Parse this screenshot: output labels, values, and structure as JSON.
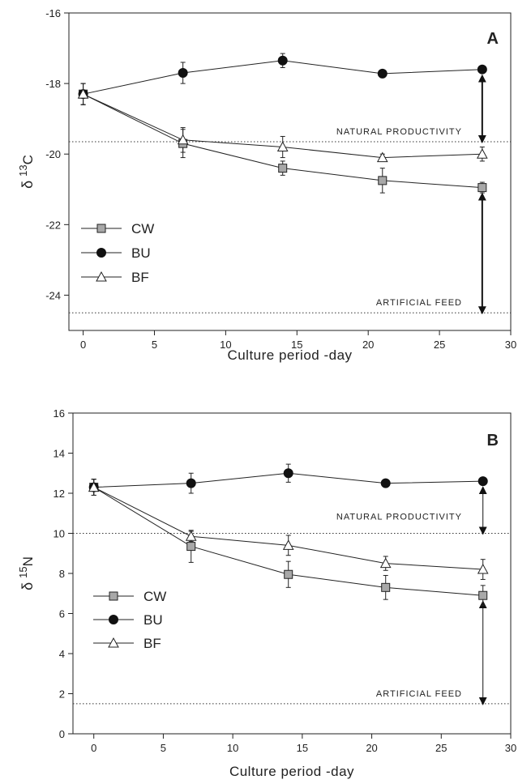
{
  "chart_data": [
    {
      "type": "line",
      "panel_label": "A",
      "xlabel": "Culture period -day",
      "ylabel": {
        "symbol": "δ",
        "superscript": "13",
        "element": "C"
      },
      "xlim": [
        -1,
        30
      ],
      "ylim": [
        -25,
        -16
      ],
      "xticks": [
        0,
        5,
        10,
        15,
        20,
        25,
        30
      ],
      "yticks": [
        -24,
        -22,
        -20,
        -18,
        -16
      ],
      "x": [
        0,
        7,
        14,
        21,
        28
      ],
      "series": [
        {
          "name": "CW",
          "marker": "square",
          "values": [
            -18.3,
            -19.7,
            -20.4,
            -20.75,
            -20.95
          ],
          "errors": [
            0.3,
            0.4,
            0.2,
            0.35,
            0.15
          ]
        },
        {
          "name": "BU",
          "marker": "circle",
          "values": [
            -18.3,
            -17.7,
            -17.35,
            -17.72,
            -17.6
          ],
          "errors": [
            0.3,
            0.3,
            0.2,
            0.05,
            0.05
          ]
        },
        {
          "name": "BF",
          "marker": "triangle",
          "values": [
            -18.3,
            -19.6,
            -19.8,
            -20.1,
            -20.0
          ],
          "errors": [
            0.3,
            0.35,
            0.3,
            0.1,
            0.2
          ]
        }
      ],
      "reference_lines": [
        {
          "label": "NATURAL PRODUCTIVITY",
          "y": -19.65
        },
        {
          "label": "ARTIFICIAL FEED",
          "y": -24.5
        }
      ],
      "arrows": [
        {
          "x": 28,
          "from": -17.6,
          "to": -19.65
        },
        {
          "x": 28,
          "from": -20.95,
          "to": -24.5
        }
      ],
      "legend_position": "bottom-left",
      "grid": false
    },
    {
      "type": "line",
      "panel_label": "B",
      "xlabel": "Culture period -day",
      "ylabel": {
        "symbol": "δ",
        "superscript": "15",
        "element": "N"
      },
      "xlim": [
        -1.5,
        30
      ],
      "ylim": [
        0,
        16
      ],
      "xticks": [
        0,
        5,
        10,
        15,
        20,
        25,
        30
      ],
      "yticks": [
        0,
        2,
        4,
        6,
        8,
        10,
        12,
        14,
        16
      ],
      "x": [
        0,
        7,
        14,
        21,
        28
      ],
      "series": [
        {
          "name": "CW",
          "marker": "square",
          "values": [
            12.3,
            9.35,
            7.95,
            7.3,
            6.9
          ],
          "errors": [
            0.4,
            0.8,
            0.65,
            0.6,
            0.5
          ]
        },
        {
          "name": "BU",
          "marker": "circle",
          "values": [
            12.3,
            12.5,
            13.0,
            12.5,
            12.6
          ],
          "errors": [
            0.4,
            0.5,
            0.45,
            0.05,
            0.1
          ]
        },
        {
          "name": "BF",
          "marker": "triangle",
          "values": [
            12.3,
            9.85,
            9.4,
            8.5,
            8.2
          ],
          "errors": [
            0.4,
            0.25,
            0.5,
            0.35,
            0.5
          ]
        }
      ],
      "reference_lines": [
        {
          "label": "NATURAL PRODUCTIVITY",
          "y": 10.0
        },
        {
          "label": "ARTIFICIAL FEED",
          "y": 1.5
        }
      ],
      "arrows": [
        {
          "x": 28,
          "from": 12.6,
          "to": 10.0
        },
        {
          "x": 28,
          "from": 6.9,
          "to": 1.5
        }
      ],
      "legend_position": "bottom-left",
      "grid": false
    }
  ]
}
